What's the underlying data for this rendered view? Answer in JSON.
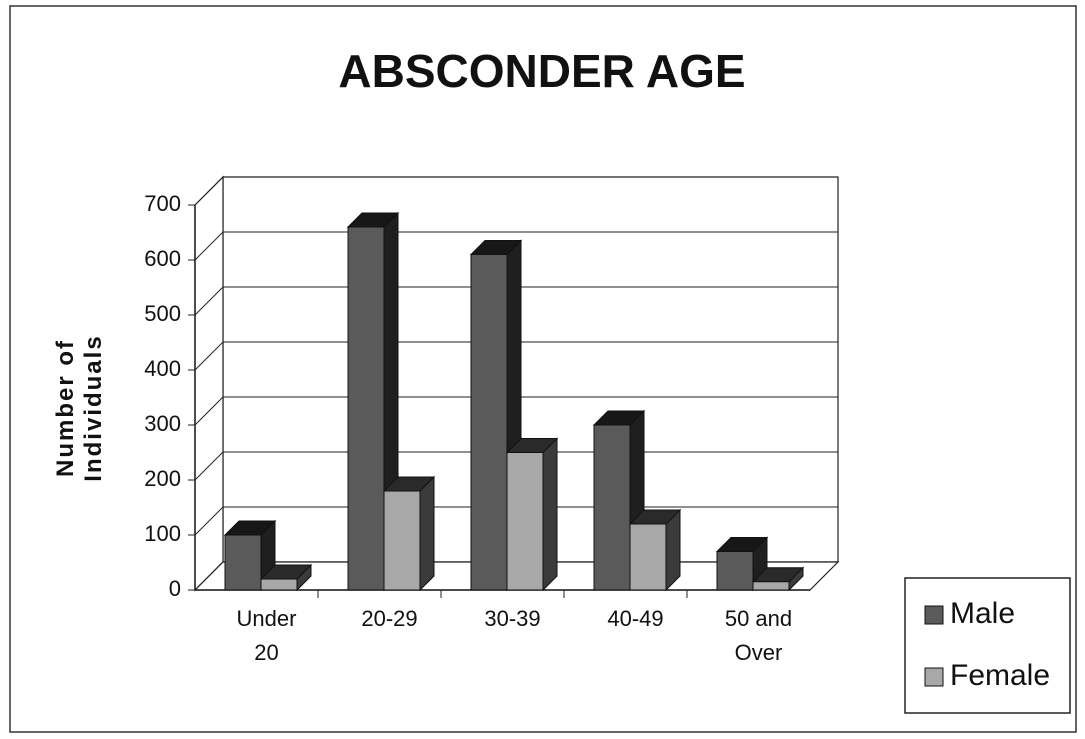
{
  "chart_data": {
    "type": "bar3d",
    "title": "ABSCONDER AGE",
    "y_label": "Number of Individuals",
    "categories": [
      "Under 20",
      "20-29",
      "30-39",
      "40-49",
      "50 and Over"
    ],
    "series": [
      {
        "name": "Male",
        "color": "#5a5a5a",
        "values": [
          100,
          660,
          610,
          300,
          70
        ]
      },
      {
        "name": "Female",
        "color": "#a8a8a8",
        "values": [
          20,
          180,
          250,
          120,
          15
        ]
      }
    ],
    "ylim": [
      0,
      700
    ],
    "yticks": [
      0,
      100,
      200,
      300,
      400,
      500,
      600,
      700
    ],
    "grid": true,
    "legend": "bottom-right"
  }
}
